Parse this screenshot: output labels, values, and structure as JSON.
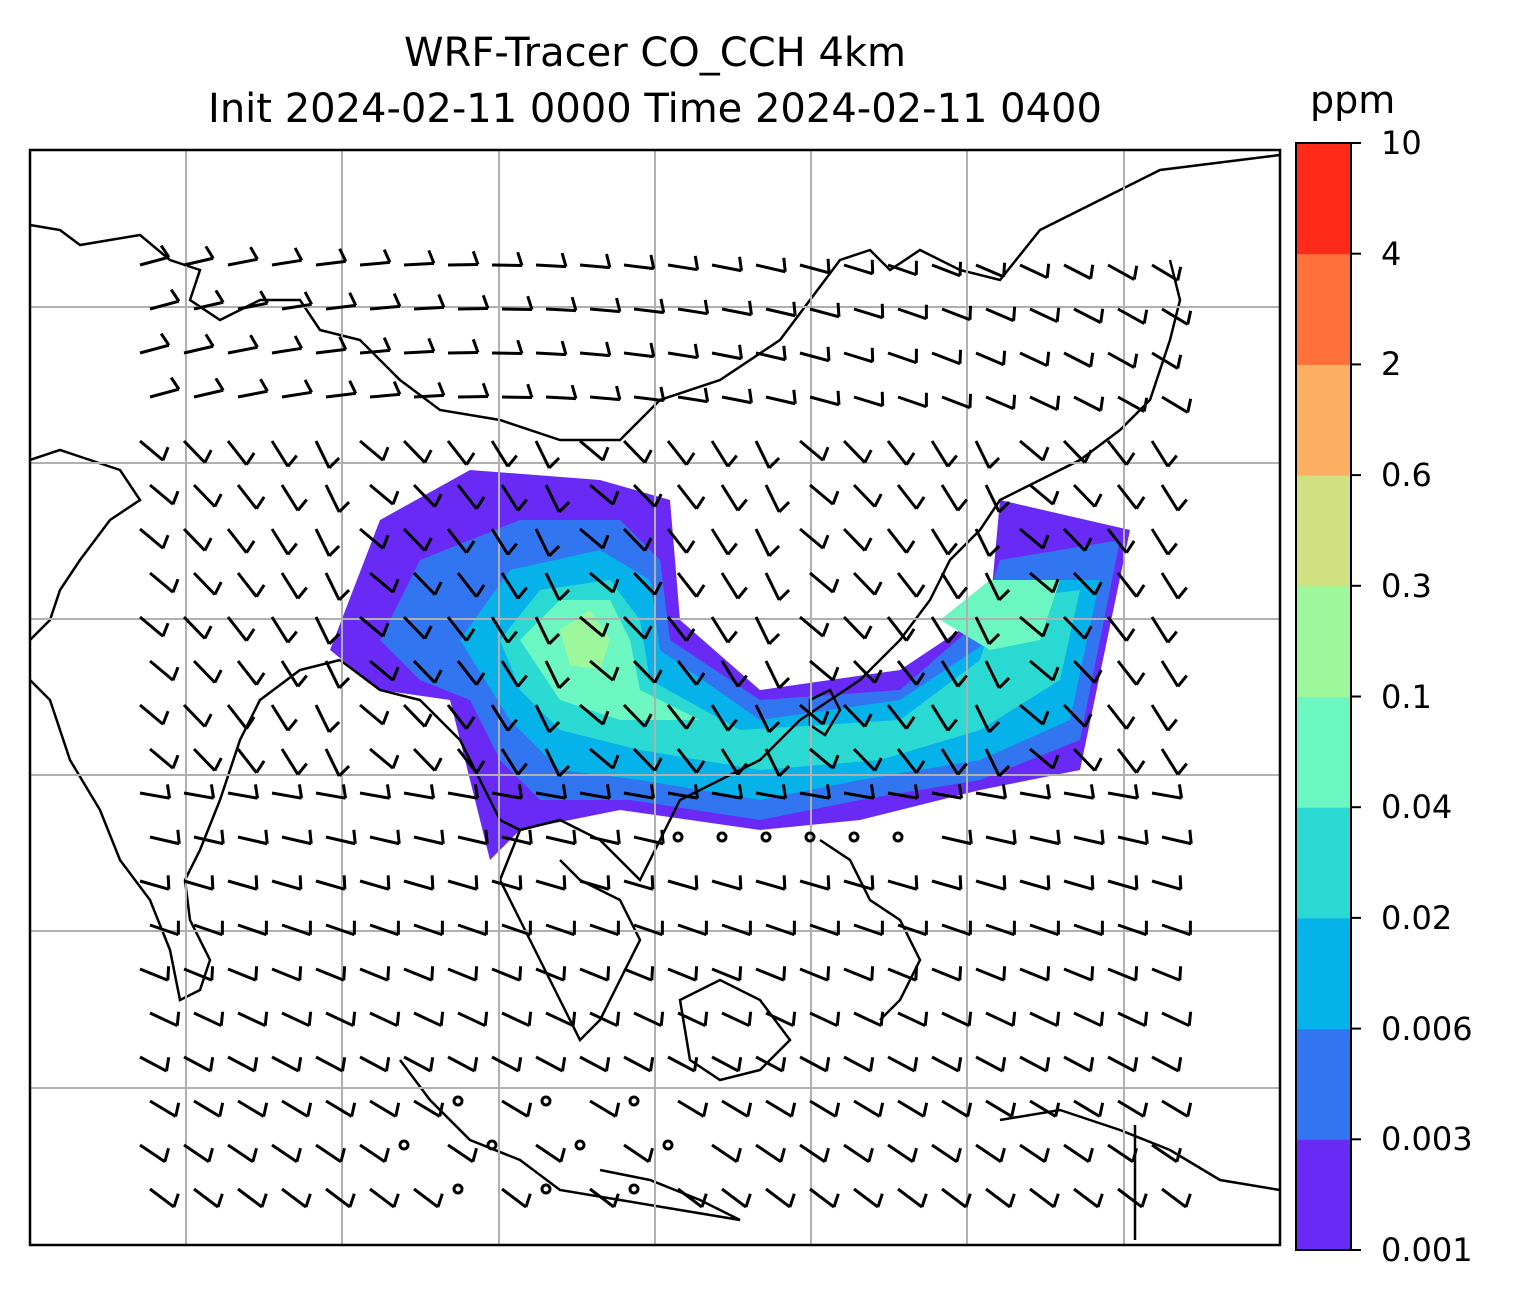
{
  "title": {
    "line1": "WRF-Tracer CO_CCH 4km",
    "line2": "Init 2024-02-11 0000 Time 2024-02-11 0400"
  },
  "colorbar": {
    "unit": "ppm",
    "ticks": [
      "0.001",
      "0.003",
      "0.006",
      "0.02",
      "0.04",
      "0.1",
      "0.3",
      "0.6",
      "2",
      "4",
      "10"
    ],
    "colors": [
      "#6a2af5",
      "#3275f0",
      "#06b2ea",
      "#2ad9d2",
      "#6cf7c2",
      "#9cf89a",
      "#d1e081",
      "#fdb063",
      "#ff703b",
      "#ff2a18"
    ]
  },
  "map": {
    "gridlines": true,
    "coastline_color": "#000000",
    "grid_color": "#b0b0b0"
  }
}
